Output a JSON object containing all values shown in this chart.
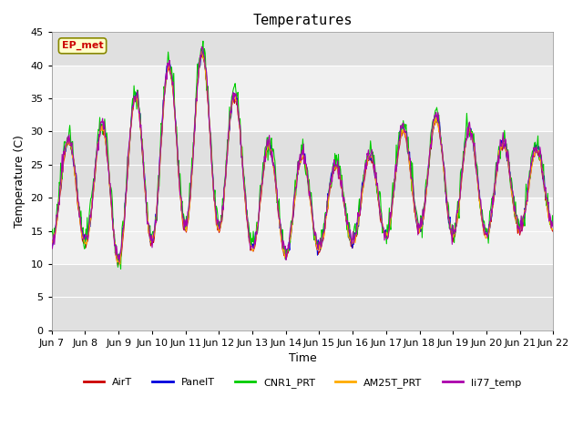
{
  "title": "Temperatures",
  "ylabel": "Temperature (C)",
  "xlabel": "Time",
  "annotation_text": "EP_met",
  "ylim": [
    0,
    45
  ],
  "tick_dates": [
    "Jun 7",
    "Jun 8",
    "Jun 9",
    "Jun 10",
    "Jun 11",
    "Jun 12",
    "Jun 13",
    "Jun 14",
    "Jun 15",
    "Jun 16",
    "Jun 17",
    "Jun 18",
    "Jun 19",
    "Jun 20",
    "Jun 21",
    "Jun 22"
  ],
  "series_names": [
    "AirT",
    "PanelT",
    "CNR1_PRT",
    "AM25T_PRT",
    "li77_temp"
  ],
  "series_colors": [
    "#cc0000",
    "#0000dd",
    "#00cc00",
    "#ffaa00",
    "#aa00aa"
  ],
  "bg_color": "#ffffff",
  "band_light": "#f0f0f0",
  "band_dark": "#e0e0e0",
  "title_fontsize": 11,
  "label_fontsize": 9,
  "tick_fontsize": 8,
  "n_days": 15,
  "n_per_day": 48,
  "envelope_min": [
    13,
    13,
    10,
    13,
    15,
    15,
    12,
    11,
    12,
    13,
    14,
    15,
    14,
    14,
    15,
    15
  ],
  "envelope_max": [
    28,
    29,
    32,
    38,
    41,
    42,
    28,
    27,
    25,
    24,
    28,
    32,
    31,
    29,
    27,
    27
  ],
  "random_seed": 42
}
